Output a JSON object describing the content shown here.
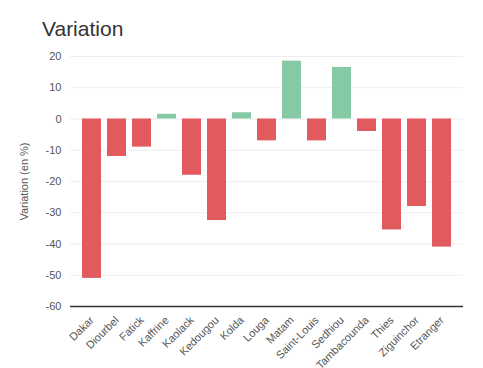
{
  "chart_data": {
    "type": "bar",
    "title": "Variation",
    "ylabel": "Variation (en %)",
    "categories": [
      "Dakar",
      "Diourbel",
      "Fatick",
      "Kaffrine",
      "Kaolack",
      "Kedougou",
      "Kolda",
      "Louga",
      "Matam",
      "Saint-Louis",
      "Sedhiou",
      "Tambacounda",
      "Thies",
      "Ziguinchor",
      "Etranger"
    ],
    "values": [
      -51,
      -12,
      -9,
      1.5,
      -18,
      -32.5,
      2,
      -7,
      18.5,
      -7,
      16.5,
      -4,
      -35.5,
      -28,
      -41
    ],
    "colors": [
      "#e05a5e",
      "#e05a5e",
      "#e05a5e",
      "#86c9a5",
      "#e05a5e",
      "#e05a5e",
      "#86c9a5",
      "#e05a5e",
      "#86c9a5",
      "#e05a5e",
      "#86c9a5",
      "#e05a5e",
      "#e05a5e",
      "#e05a5e",
      "#e05a5e"
    ],
    "ylim": [
      -60,
      20
    ],
    "yticks": [
      -60,
      -50,
      -40,
      -30,
      -20,
      -10,
      0,
      10,
      20
    ],
    "grid": true
  }
}
